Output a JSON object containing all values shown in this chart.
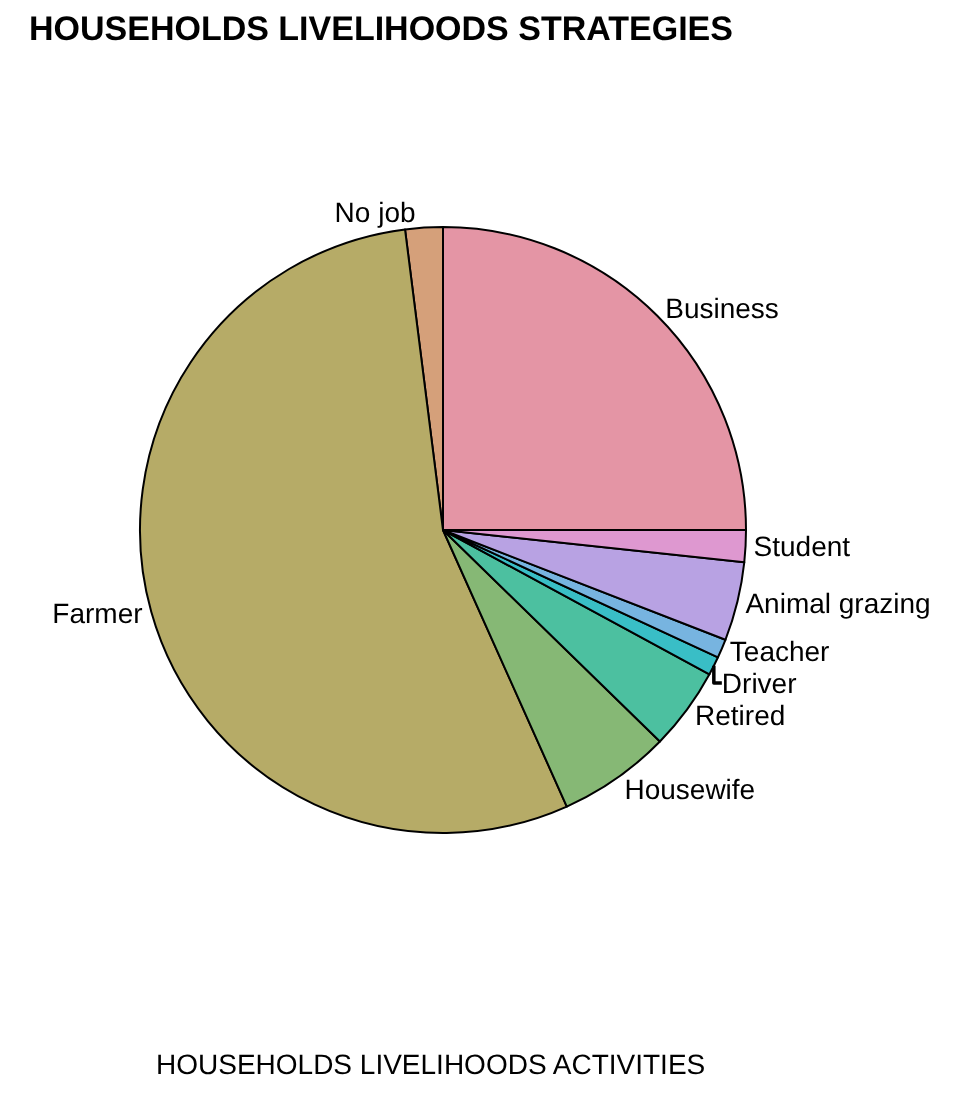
{
  "chart_data": {
    "type": "pie",
    "title": "HOUSEHOLDS LIVELIHOODS STRATEGIES",
    "xlabel": "HOUSEHOLDS LIVELIHOODS ACTIVITIES",
    "categories": [
      "Business",
      "No job",
      "Farmer",
      "Housewife",
      "Retired",
      "Driver",
      "Teacher",
      "Animal grazing",
      "Student"
    ],
    "values": [
      25,
      2,
      54.7,
      6,
      4.4,
      1,
      1,
      4.2,
      1.7
    ],
    "colors": [
      "#e495a5",
      "#d5a07a",
      "#b6ab67",
      "#86b875",
      "#4cc0a0",
      "#39bec6",
      "#77b4e0",
      "#b8a2e3",
      "#de98d0"
    ],
    "legend": false
  }
}
